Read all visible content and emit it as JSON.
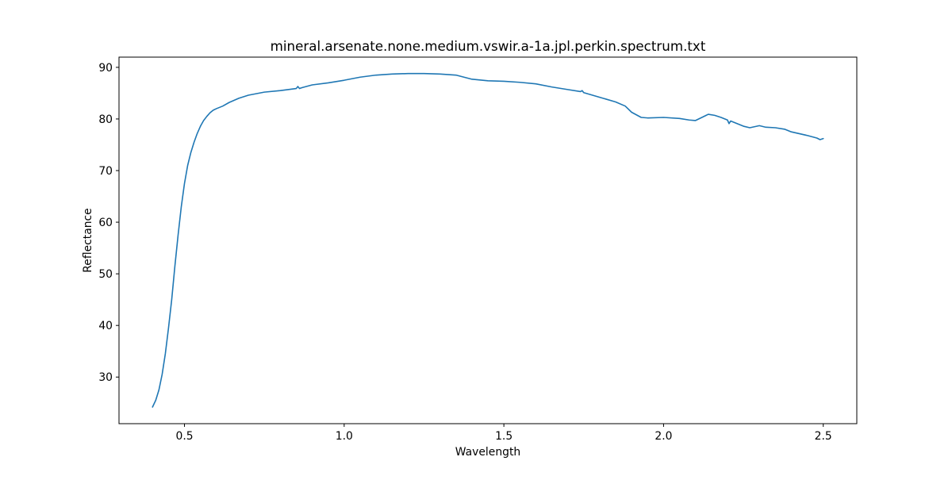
{
  "chart_data": {
    "type": "line",
    "title": "mineral.arsenate.none.medium.vswir.a-1a.jpl.perkin.spectrum.txt",
    "xlabel": "Wavelength",
    "ylabel": "Reflectance",
    "xlim": [
      0.295,
      2.605
    ],
    "ylim": [
      20.97,
      91.98
    ],
    "xticks": [
      0.5,
      1.0,
      1.5,
      2.0,
      2.5
    ],
    "xtick_labels": [
      "0.5",
      "1.0",
      "1.5",
      "2.0",
      "2.5"
    ],
    "yticks": [
      30,
      40,
      50,
      60,
      70,
      80,
      90
    ],
    "ytick_labels": [
      "30",
      "40",
      "50",
      "60",
      "70",
      "80",
      "90"
    ],
    "grid": false,
    "legend": "none",
    "series": [
      {
        "color": "#1f77b4",
        "x": [
          0.4,
          0.41,
          0.42,
          0.43,
          0.44,
          0.45,
          0.46,
          0.47,
          0.48,
          0.49,
          0.5,
          0.51,
          0.52,
          0.53,
          0.54,
          0.55,
          0.56,
          0.57,
          0.58,
          0.59,
          0.6,
          0.62,
          0.64,
          0.67,
          0.7,
          0.75,
          0.8,
          0.85,
          0.855,
          0.86,
          0.865,
          0.87,
          0.9,
          0.95,
          1.0,
          1.05,
          1.1,
          1.15,
          1.2,
          1.25,
          1.3,
          1.35,
          1.4,
          1.45,
          1.5,
          1.55,
          1.6,
          1.65,
          1.7,
          1.74,
          1.745,
          1.75,
          1.8,
          1.85,
          1.88,
          1.9,
          1.93,
          1.95,
          2.0,
          2.05,
          2.08,
          2.1,
          2.12,
          2.14,
          2.16,
          2.18,
          2.2,
          2.205,
          2.21,
          2.25,
          2.27,
          2.3,
          2.32,
          2.35,
          2.38,
          2.4,
          2.45,
          2.48,
          2.49,
          2.5
        ],
        "y": [
          24.2,
          25.5,
          27.5,
          30.5,
          34.5,
          39.5,
          45.0,
          51.5,
          57.5,
          63.0,
          67.5,
          71.0,
          73.5,
          75.5,
          77.2,
          78.6,
          79.7,
          80.5,
          81.2,
          81.7,
          82.0,
          82.5,
          83.2,
          84.0,
          84.6,
          85.2,
          85.5,
          85.9,
          86.3,
          85.9,
          86.0,
          86.1,
          86.6,
          87.0,
          87.5,
          88.1,
          88.5,
          88.7,
          88.8,
          88.8,
          88.7,
          88.5,
          87.7,
          87.4,
          87.3,
          87.1,
          86.8,
          86.2,
          85.7,
          85.3,
          85.5,
          85.1,
          84.2,
          83.3,
          82.5,
          81.3,
          80.3,
          80.2,
          80.3,
          80.1,
          79.8,
          79.7,
          80.3,
          80.9,
          80.7,
          80.3,
          79.8,
          79.1,
          79.6,
          78.6,
          78.3,
          78.7,
          78.4,
          78.3,
          78.0,
          77.5,
          76.8,
          76.3,
          76.0,
          76.2
        ]
      }
    ]
  }
}
